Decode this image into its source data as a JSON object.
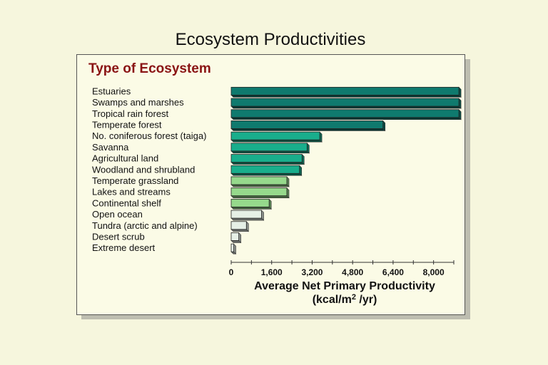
{
  "chart_data": {
    "type": "bar",
    "orientation": "horizontal",
    "title": "Ecosystem Productivities",
    "category_axis_title": "Type of Ecosystem",
    "xlabel_line1": "Average Net Primary Productivity",
    "xlabel_line2_prefix": "(kcal/m",
    "xlabel_line2_sup": "2",
    "xlabel_line2_suffix": " /yr)",
    "xlim": [
      0,
      8800
    ],
    "xticks": [
      "0",
      "1,600",
      "3,200",
      "4,800",
      "6,400",
      "8,000"
    ],
    "xtick_values": [
      0,
      1600,
      3200,
      4800,
      6400,
      8000
    ],
    "categories": [
      "Estuaries",
      "Swamps and marshes",
      "Tropical rain forest",
      "Temperate forest",
      "No. coniferous forest (taiga)",
      "Savanna",
      "Agricultural land",
      "Woodland and shrubland",
      "Temperate grassland",
      "Lakes and streams",
      "Continental shelf",
      "Open ocean",
      "Tundra (arctic and alpine)",
      "Desert scrub",
      "Extreme desert"
    ],
    "values": [
      9000,
      9000,
      9000,
      6000,
      3500,
      3000,
      2800,
      2700,
      2200,
      2200,
      1500,
      1200,
      600,
      300,
      100
    ],
    "bar_colors": [
      "#0f7a6e",
      "#0f7a6e",
      "#0f7a6e",
      "#0f7a6e",
      "#19ae8c",
      "#19ae8c",
      "#19ae8c",
      "#19ae8c",
      "#96d98c",
      "#96d98c",
      "#96d98c",
      "#e6f0e6",
      "#e6f0e6",
      "#e6f0e6",
      "#e6f0e6"
    ],
    "grid": false
  }
}
